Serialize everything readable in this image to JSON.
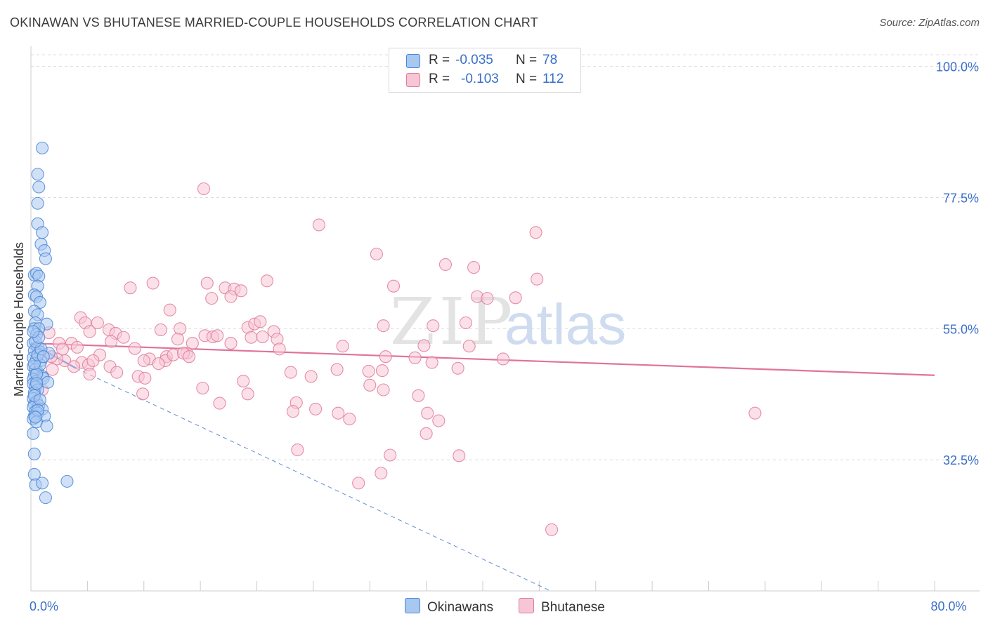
{
  "title": "OKINAWAN VS BHUTANESE MARRIED-COUPLE HOUSEHOLDS CORRELATION CHART",
  "source": "Source: ZipAtlas.com",
  "watermark": {
    "zip": "ZIP",
    "atlas": "atlas"
  },
  "legend": {
    "rows": [
      {
        "r_label": "R =",
        "r_value": "-0.035",
        "n_label": "N =",
        "n_value": "78"
      },
      {
        "r_label": "R =",
        "r_value": "-0.103",
        "n_label": "N =",
        "n_value": "112"
      }
    ]
  },
  "bottom_legend": {
    "okinawans": "Okinawans",
    "bhutanese": "Bhutanese"
  },
  "colors": {
    "okinawan_fill": "#a9c8f0",
    "okinawan_stroke": "#4a86d8",
    "okinawan_line": "#3a6fc9",
    "bhutanese_fill": "#f7c6d5",
    "bhutanese_stroke": "#e07a9e",
    "bhutanese_line": "#e0739a",
    "grid": "#dcdcdc",
    "tick_label": "#3a6fc9"
  },
  "chart_data": {
    "type": "scatter",
    "title": "OKINAWAN VS BHUTANESE MARRIED-COUPLE HOUSEHOLDS CORRELATION CHART",
    "xlabel": "",
    "ylabel": "Married-couple Households",
    "xlim": [
      0,
      80
    ],
    "ylim": [
      10,
      102
    ],
    "x_tick_labels": [
      {
        "value": 0,
        "label": "0.0%"
      },
      {
        "value": 80,
        "label": "80.0%"
      }
    ],
    "y_tick_labels": [
      {
        "value": 100,
        "label": "100.0%"
      },
      {
        "value": 77.5,
        "label": "77.5%"
      },
      {
        "value": 55,
        "label": "55.0%"
      },
      {
        "value": 32.5,
        "label": "32.5%"
      }
    ],
    "series": [
      {
        "name": "Okinawans",
        "r": -0.035,
        "n": 78,
        "trend": {
          "x1": 0,
          "y1": 52.5,
          "x2": 4,
          "y2": 48.2
        },
        "trend_extension": {
          "x1": 4,
          "y1": 48.2,
          "x2": 46,
          "y2": 10
        },
        "points": [
          [
            1.0,
            86.0
          ],
          [
            0.6,
            81.5
          ],
          [
            0.7,
            79.3
          ],
          [
            0.6,
            76.5
          ],
          [
            0.6,
            73.0
          ],
          [
            1.0,
            71.5
          ],
          [
            0.9,
            69.5
          ],
          [
            1.2,
            68.4
          ],
          [
            1.3,
            67.0
          ],
          [
            0.3,
            64.2
          ],
          [
            0.5,
            64.5
          ],
          [
            0.7,
            64.0
          ],
          [
            0.6,
            62.3
          ],
          [
            0.3,
            60.8
          ],
          [
            0.5,
            60.5
          ],
          [
            0.8,
            59.5
          ],
          [
            0.3,
            58.0
          ],
          [
            0.6,
            57.4
          ],
          [
            0.4,
            56.0
          ],
          [
            1.4,
            55.8
          ],
          [
            0.3,
            55.0
          ],
          [
            0.7,
            55.0
          ],
          [
            0.5,
            54.0
          ],
          [
            0.2,
            52.5
          ],
          [
            0.6,
            51.8
          ],
          [
            0.3,
            51.2
          ],
          [
            0.8,
            51.0
          ],
          [
            1.6,
            50.8
          ],
          [
            0.2,
            50.0
          ],
          [
            0.5,
            49.8
          ],
          [
            0.9,
            49.5
          ],
          [
            0.2,
            48.5
          ],
          [
            0.4,
            48.0
          ],
          [
            0.6,
            47.5
          ],
          [
            0.3,
            47.0
          ],
          [
            1.0,
            46.8
          ],
          [
            0.2,
            46.3
          ],
          [
            0.5,
            46.0
          ],
          [
            1.1,
            46.5
          ],
          [
            1.5,
            45.8
          ],
          [
            0.2,
            45.5
          ],
          [
            0.4,
            45.0
          ],
          [
            0.6,
            44.5
          ],
          [
            0.3,
            44.0
          ],
          [
            0.2,
            43.0
          ],
          [
            0.5,
            42.5
          ],
          [
            0.3,
            42.0
          ],
          [
            0.7,
            41.8
          ],
          [
            0.2,
            41.5
          ],
          [
            1.0,
            41.2
          ],
          [
            0.4,
            40.8
          ],
          [
            0.6,
            40.5
          ],
          [
            0.3,
            40.0
          ],
          [
            1.2,
            40.0
          ],
          [
            0.2,
            39.5
          ],
          [
            0.5,
            39.0
          ],
          [
            1.4,
            38.3
          ],
          [
            0.2,
            37.0
          ],
          [
            0.3,
            33.5
          ],
          [
            0.3,
            30.0
          ],
          [
            0.4,
            28.2
          ],
          [
            1.0,
            28.5
          ],
          [
            3.2,
            28.8
          ],
          [
            1.3,
            26.0
          ],
          [
            0.8,
            48.8
          ],
          [
            0.5,
            47.2
          ],
          [
            0.3,
            49.0
          ],
          [
            0.6,
            50.5
          ],
          [
            0.9,
            51.5
          ],
          [
            0.4,
            52.8
          ],
          [
            0.7,
            53.5
          ],
          [
            0.2,
            54.5
          ],
          [
            1.1,
            50.2
          ],
          [
            0.5,
            45.6
          ],
          [
            0.3,
            43.5
          ],
          [
            0.8,
            42.8
          ],
          [
            0.6,
            41.0
          ],
          [
            0.4,
            39.8
          ]
        ]
      },
      {
        "name": "Bhutanese",
        "r": -0.103,
        "n": 112,
        "trend": {
          "x1": 0,
          "y1": 52.5,
          "x2": 80,
          "y2": 47.0
        },
        "points": [
          [
            15.3,
            79.0
          ],
          [
            25.5,
            72.8
          ],
          [
            44.7,
            71.5
          ],
          [
            30.6,
            67.8
          ],
          [
            36.7,
            66.0
          ],
          [
            39.2,
            65.5
          ],
          [
            20.9,
            63.2
          ],
          [
            44.8,
            63.5
          ],
          [
            8.8,
            62.0
          ],
          [
            10.8,
            62.8
          ],
          [
            15.6,
            62.8
          ],
          [
            17.2,
            62.0
          ],
          [
            18.0,
            61.8
          ],
          [
            32.1,
            62.3
          ],
          [
            16.0,
            60.2
          ],
          [
            17.7,
            60.5
          ],
          [
            18.6,
            61.5
          ],
          [
            39.5,
            60.5
          ],
          [
            40.4,
            60.2
          ],
          [
            42.9,
            60.3
          ],
          [
            12.3,
            58.2
          ],
          [
            4.4,
            56.9
          ],
          [
            4.8,
            56.0
          ],
          [
            5.9,
            56.0
          ],
          [
            19.2,
            55.2
          ],
          [
            19.8,
            55.8
          ],
          [
            20.3,
            56.2
          ],
          [
            38.5,
            56.0
          ],
          [
            6.9,
            54.8
          ],
          [
            5.2,
            54.5
          ],
          [
            7.5,
            54.2
          ],
          [
            11.5,
            54.8
          ],
          [
            13.2,
            55.0
          ],
          [
            15.4,
            53.8
          ],
          [
            16.1,
            53.6
          ],
          [
            21.5,
            54.5
          ],
          [
            1.6,
            54.3
          ],
          [
            8.2,
            53.5
          ],
          [
            13.0,
            53.2
          ],
          [
            16.5,
            53.8
          ],
          [
            19.5,
            53.5
          ],
          [
            20.5,
            53.6
          ],
          [
            21.8,
            53.2
          ],
          [
            31.2,
            55.5
          ],
          [
            35.6,
            55.5
          ],
          [
            2.5,
            52.5
          ],
          [
            3.6,
            52.5
          ],
          [
            7.1,
            52.8
          ],
          [
            14.3,
            52.5
          ],
          [
            17.7,
            52.5
          ],
          [
            27.6,
            52.0
          ],
          [
            34.8,
            52.1
          ],
          [
            38.8,
            52.0
          ],
          [
            4.1,
            51.8
          ],
          [
            2.8,
            51.5
          ],
          [
            9.2,
            51.6
          ],
          [
            22.0,
            51.5
          ],
          [
            13.8,
            50.8
          ],
          [
            6.1,
            50.5
          ],
          [
            12.0,
            50.2
          ],
          [
            10.5,
            49.8
          ],
          [
            11.9,
            49.5
          ],
          [
            12.6,
            50.5
          ],
          [
            13.5,
            50.8
          ],
          [
            3.0,
            49.5
          ],
          [
            2.3,
            49.8
          ],
          [
            1.8,
            50.2
          ],
          [
            4.5,
            49.2
          ],
          [
            5.1,
            48.8
          ],
          [
            5.5,
            49.5
          ],
          [
            10.0,
            49.5
          ],
          [
            11.3,
            49.0
          ],
          [
            14.0,
            50.2
          ],
          [
            31.4,
            50.2
          ],
          [
            34.0,
            50.0
          ],
          [
            35.5,
            49.2
          ],
          [
            41.8,
            49.8
          ],
          [
            1.9,
            48.0
          ],
          [
            3.8,
            48.5
          ],
          [
            7.0,
            48.5
          ],
          [
            23.0,
            47.5
          ],
          [
            27.1,
            48.0
          ],
          [
            29.9,
            47.7
          ],
          [
            31.1,
            47.8
          ],
          [
            37.8,
            48.2
          ],
          [
            5.2,
            47.2
          ],
          [
            7.6,
            47.5
          ],
          [
            9.5,
            46.8
          ],
          [
            10.1,
            46.5
          ],
          [
            24.8,
            46.8
          ],
          [
            18.8,
            46.0
          ],
          [
            30.0,
            45.3
          ],
          [
            15.2,
            44.8
          ],
          [
            31.2,
            44.5
          ],
          [
            1.0,
            44.5
          ],
          [
            9.9,
            43.8
          ],
          [
            19.2,
            43.8
          ],
          [
            34.3,
            43.5
          ],
          [
            16.7,
            42.2
          ],
          [
            23.5,
            42.3
          ],
          [
            23.2,
            40.8
          ],
          [
            25.2,
            41.2
          ],
          [
            27.2,
            40.5
          ],
          [
            28.2,
            39.5
          ],
          [
            36.1,
            39.2
          ],
          [
            35.1,
            40.5
          ],
          [
            64.1,
            40.5
          ],
          [
            35.0,
            37.0
          ],
          [
            23.6,
            34.2
          ],
          [
            31.8,
            33.3
          ],
          [
            37.9,
            33.2
          ],
          [
            31.0,
            30.2
          ],
          [
            29.0,
            28.5
          ],
          [
            46.1,
            20.5
          ]
        ]
      }
    ]
  }
}
